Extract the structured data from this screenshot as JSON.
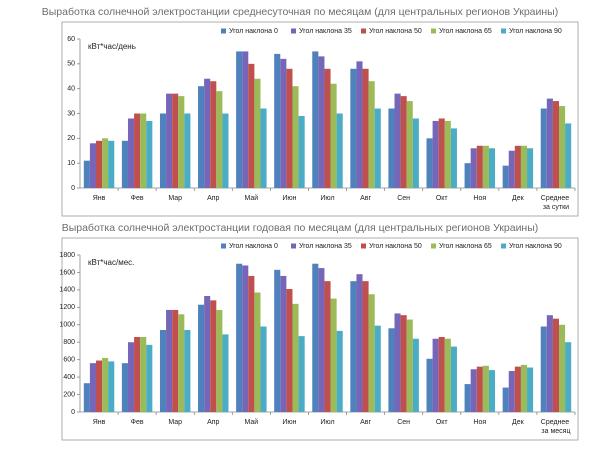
{
  "chart_data": [
    {
      "type": "bar",
      "title": "Выработка солнечной электростанции среднесуточная по месяцам (для центральных регионов Украины)",
      "y_label": "кВт*час/день",
      "legend": "top",
      "categories": [
        "Янв",
        "Фев",
        "Мар",
        "Апр",
        "Май",
        "Июн",
        "Июл",
        "Авг",
        "Сен",
        "Окт",
        "Ноя",
        "Дек",
        "Среднее за сутки"
      ],
      "series": [
        {
          "name": "Угол наклона 0",
          "color": "#4f81bd",
          "values": [
            11,
            19,
            30,
            41,
            55,
            54,
            55,
            48,
            32,
            20,
            10,
            9,
            32
          ]
        },
        {
          "name": "Угол наклона 35",
          "color": "#7766b8",
          "values": [
            18,
            28,
            38,
            44,
            55,
            52,
            53,
            51,
            38,
            27,
            16,
            15,
            36
          ]
        },
        {
          "name": "Угол наклона 50",
          "color": "#c0504d",
          "values": [
            19,
            30,
            38,
            43,
            50,
            48,
            48,
            48,
            37,
            28,
            17,
            17,
            35
          ]
        },
        {
          "name": "Угол наклона 65",
          "color": "#9bbb59",
          "values": [
            20,
            30,
            37,
            39,
            44,
            41,
            42,
            43,
            35,
            27,
            17,
            17,
            33
          ]
        },
        {
          "name": "Угол наклона 90",
          "color": "#4bacc6",
          "values": [
            19,
            27,
            30,
            30,
            32,
            29,
            30,
            32,
            28,
            24,
            16,
            16,
            26
          ]
        }
      ],
      "ylim": [
        0,
        60
      ],
      "yticks": [
        0,
        10,
        20,
        30,
        40,
        50,
        60
      ]
    },
    {
      "type": "bar",
      "title": "Выработка солнечной электростанции годовая по месяцам (для центральных регионов Украины)",
      "y_label": "кВт*час/мес.",
      "legend": "top",
      "categories": [
        "Янв",
        "Фев",
        "Мар",
        "Апр",
        "Май",
        "Июн",
        "Июл",
        "Авг",
        "Сен",
        "Окт",
        "Ноя",
        "Дек",
        "Среднее за месяц"
      ],
      "series": [
        {
          "name": "Угол наклона 0",
          "color": "#4f81bd",
          "values": [
            330,
            560,
            940,
            1230,
            1700,
            1630,
            1700,
            1500,
            960,
            610,
            320,
            280,
            980
          ]
        },
        {
          "name": "Угол наклона 35",
          "color": "#7766b8",
          "values": [
            560,
            800,
            1170,
            1330,
            1680,
            1560,
            1650,
            1580,
            1130,
            840,
            490,
            470,
            1110
          ]
        },
        {
          "name": "Угол наклона 50",
          "color": "#c0504d",
          "values": [
            590,
            860,
            1170,
            1280,
            1560,
            1410,
            1500,
            1500,
            1110,
            860,
            520,
            520,
            1070
          ]
        },
        {
          "name": "Угол наклона 65",
          "color": "#9bbb59",
          "values": [
            620,
            860,
            1120,
            1170,
            1370,
            1240,
            1300,
            1350,
            1060,
            840,
            530,
            540,
            1000
          ]
        },
        {
          "name": "Угол наклона 90",
          "color": "#4bacc6",
          "values": [
            580,
            770,
            940,
            890,
            980,
            870,
            930,
            990,
            840,
            750,
            480,
            510,
            800
          ]
        }
      ],
      "ylim": [
        0,
        1800
      ],
      "yticks": [
        0,
        200,
        400,
        600,
        800,
        1000,
        1200,
        1400,
        1600,
        1800
      ]
    }
  ]
}
